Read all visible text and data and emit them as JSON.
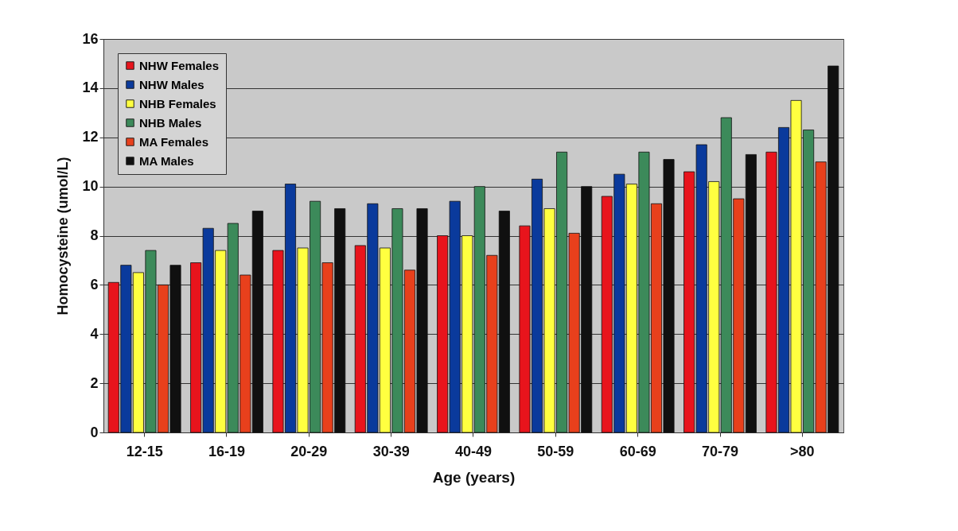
{
  "chart_data": {
    "type": "bar",
    "xlabel": "Age (years)",
    "ylabel": "Homocysteine (umol/L)",
    "categories": [
      "12-15",
      "16-19",
      "20-29",
      "30-39",
      "40-49",
      "50-59",
      "60-69",
      "70-79",
      ">80"
    ],
    "series": [
      {
        "name": "NHW Females",
        "color": "#e8141c",
        "values": [
          6.1,
          6.9,
          7.4,
          7.6,
          8.0,
          8.4,
          9.6,
          10.6,
          11.4
        ]
      },
      {
        "name": "NHW Males",
        "color": "#0a3a9c",
        "values": [
          6.8,
          8.3,
          10.1,
          9.3,
          9.4,
          10.3,
          10.5,
          11.7,
          12.4
        ]
      },
      {
        "name": "NHB Females",
        "color": "#ffff40",
        "values": [
          6.5,
          7.4,
          7.5,
          7.5,
          8.0,
          9.1,
          10.1,
          10.2,
          13.5
        ]
      },
      {
        "name": "NHB Males",
        "color": "#3c8a5a",
        "values": [
          7.4,
          8.5,
          9.4,
          9.1,
          10.0,
          11.4,
          11.4,
          12.8,
          12.3
        ]
      },
      {
        "name": "MA Females",
        "color": "#e8401c",
        "values": [
          6.0,
          6.4,
          6.9,
          6.6,
          7.2,
          8.1,
          9.3,
          9.5,
          11.0
        ]
      },
      {
        "name": "MA Males",
        "color": "#101010",
        "values": [
          6.8,
          9.0,
          9.1,
          9.1,
          9.0,
          10.0,
          11.1,
          11.3,
          14.9
        ]
      }
    ],
    "ylim": [
      0,
      16
    ],
    "yticks": [
      0,
      2,
      4,
      6,
      8,
      10,
      12,
      14,
      16
    ],
    "grid": "y",
    "legend": "top left"
  }
}
